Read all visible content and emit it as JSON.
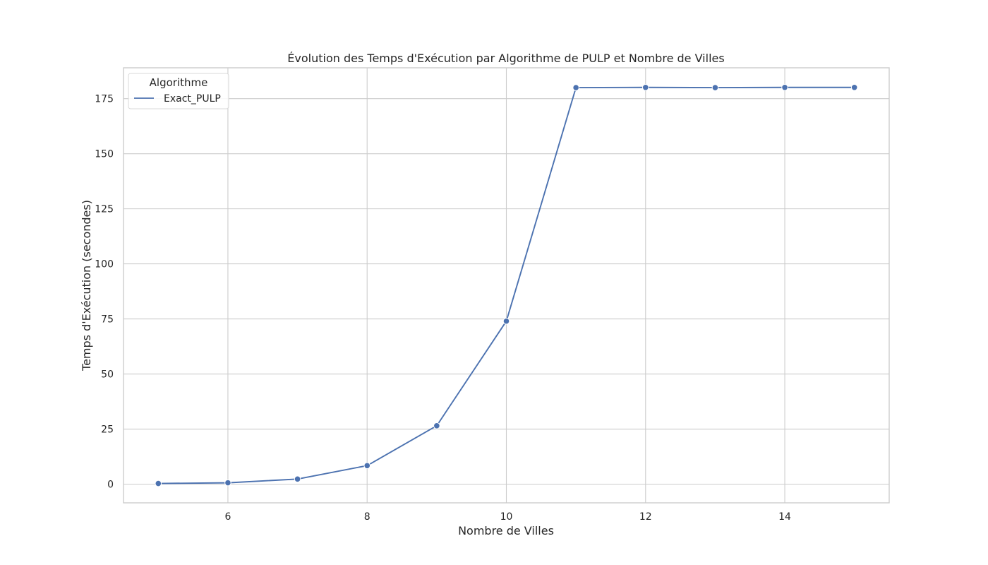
{
  "chart_data": {
    "type": "line",
    "title": "Évolution des Temps d'Exécution par Algorithme de PULP et Nombre de Villes",
    "xlabel": "Nombre de Villes",
    "ylabel": "Temps d'Exécution (secondes)",
    "xlim": [
      4.5,
      15.5
    ],
    "ylim": [
      -8.5,
      189
    ],
    "xticks": [
      6,
      8,
      10,
      12,
      14
    ],
    "yticks": [
      0,
      25,
      50,
      75,
      100,
      125,
      150,
      175
    ],
    "grid": true,
    "legend": {
      "title": "Algorithme",
      "placement": "top-left"
    },
    "series": [
      {
        "name": "Exact_PULP",
        "color": "#4c72b0",
        "x": [
          5,
          6,
          7,
          8,
          9,
          10,
          11,
          12,
          13,
          14,
          15
        ],
        "y": [
          0.3,
          0.6,
          2.3,
          8.4,
          26.5,
          74.0,
          180.0,
          180.1,
          180.0,
          180.1,
          180.1
        ]
      }
    ]
  }
}
